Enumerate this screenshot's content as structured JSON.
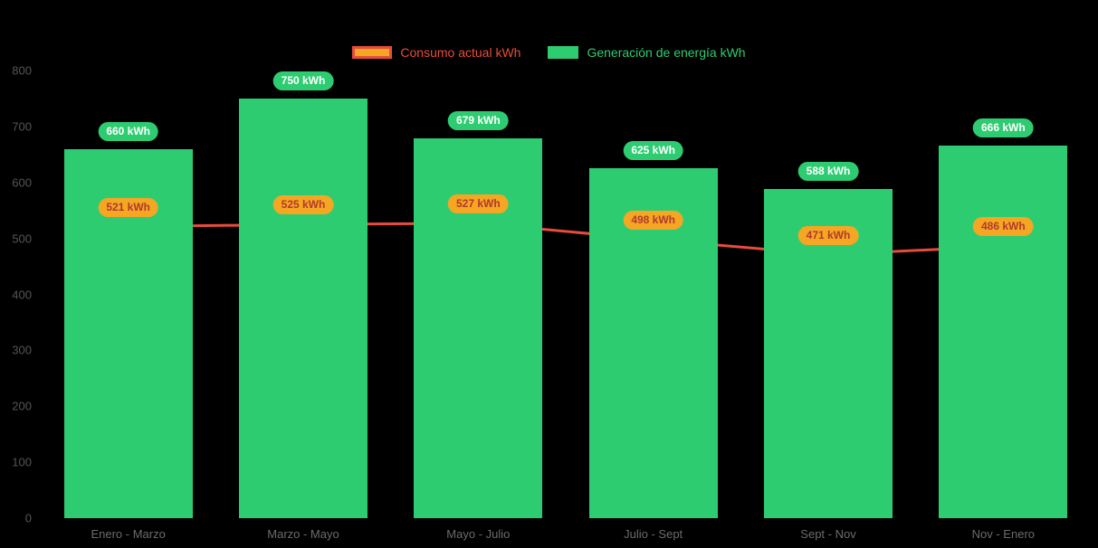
{
  "legend": {
    "consumption_label": "Consumo actual kWh",
    "generation_label": "Generación de energía kWh"
  },
  "chart_data": {
    "type": "bar",
    "subtype": "bar+line combo",
    "categories": [
      "Enero - Marzo",
      "Marzo - Mayo",
      "Mayo - Julio",
      "Julio - Sept",
      "Sept - Nov",
      "Nov - Enero"
    ],
    "series": [
      {
        "name": "Consumo actual kWh",
        "type": "line",
        "values": [
          521,
          525,
          527,
          498,
          471,
          486
        ],
        "labels": [
          "521 kWh",
          "525 kWh",
          "527 kWh",
          "498 kWh",
          "471 kWh",
          "486 kWh"
        ],
        "color": "#e74c3c",
        "point_color": "#f5a623",
        "label_bg": "#f5a623",
        "label_text_color": "#b03a2e"
      },
      {
        "name": "Generación de energía kWh",
        "type": "bar",
        "values": [
          660,
          750,
          679,
          625,
          588,
          666
        ],
        "labels": [
          "660 kWh",
          "750 kWh",
          "679 kWh",
          "625 kWh",
          "588 kWh",
          "666 kWh"
        ],
        "color": "#2ecc71",
        "label_bg": "#2ecc71",
        "label_text_color": "#ffffff"
      }
    ],
    "title": "",
    "xlabel": "",
    "ylabel": "",
    "ylim": [
      0,
      800
    ],
    "y_ticks": [
      0,
      100,
      200,
      300,
      400,
      500,
      600,
      700,
      800
    ],
    "grid": false,
    "legend_position": "top",
    "background": "#000000"
  }
}
